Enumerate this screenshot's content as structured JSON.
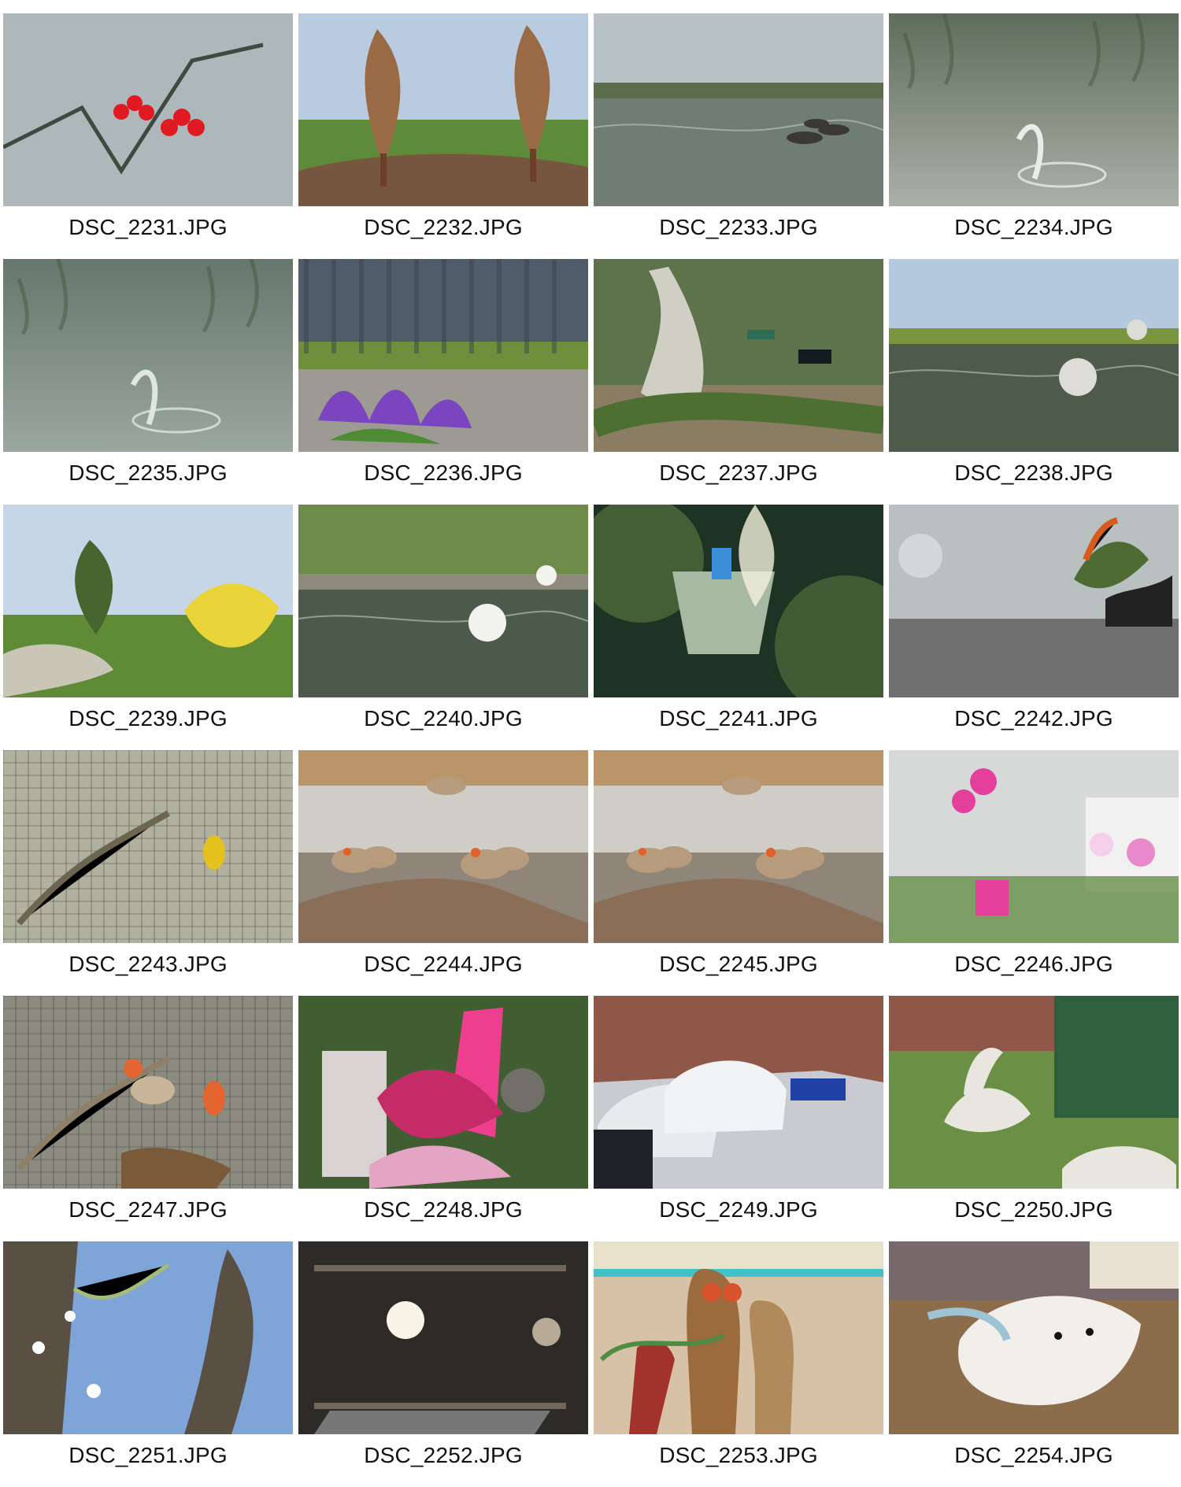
{
  "thumbnails": [
    {
      "filename": "DSC_2231.JPG",
      "scene": "red-berries",
      "colors": [
        "#aeb7ba",
        "#6c7a72",
        "#3d4a40"
      ],
      "accent": "#e01a22"
    },
    {
      "filename": "DSC_2232.JPG",
      "scene": "park-trees",
      "colors": [
        "#b9cbe0",
        "#5d8b3a",
        "#6b3f28"
      ],
      "accent": "#9a6a45"
    },
    {
      "filename": "DSC_2233.JPG",
      "scene": "pond-geese",
      "colors": [
        "#b8c2c7",
        "#5b6d4a",
        "#707d72"
      ],
      "accent": "#3a3a32"
    },
    {
      "filename": "DSC_2234.JPG",
      "scene": "water-splash",
      "colors": [
        "#5e6d5b",
        "#879184",
        "#a9b1a7"
      ],
      "accent": "#e8eee5"
    },
    {
      "filename": "DSC_2235.JPG",
      "scene": "water-ripple",
      "colors": [
        "#66776d",
        "#7f8d84",
        "#9ba6a0"
      ],
      "accent": "#dfe6e1"
    },
    {
      "filename": "DSC_2236.JPG",
      "scene": "crocus-flowers",
      "colors": [
        "#515c6a",
        "#6f8f3c",
        "#9d9a93"
      ],
      "accent": "#7b45bf"
    },
    {
      "filename": "DSC_2237.JPG",
      "scene": "garden-statue",
      "colors": [
        "#5e724c",
        "#8b7d63",
        "#c8c6b6"
      ],
      "accent": "#d0cfc3"
    },
    {
      "filename": "DSC_2238.JPG",
      "scene": "garden-pond",
      "colors": [
        "#b5c9de",
        "#7a9540",
        "#4e5b4a"
      ],
      "accent": "#dedcd6"
    },
    {
      "filename": "DSC_2239.JPG",
      "scene": "garden-path",
      "colors": [
        "#c6d6e7",
        "#5f8a36",
        "#c9c5b7"
      ],
      "accent": "#e9d43a"
    },
    {
      "filename": "DSC_2240.JPG",
      "scene": "pebble-pond",
      "colors": [
        "#6f8b49",
        "#8e8b7d",
        "#4c5a4b"
      ],
      "accent": "#f2f2ef"
    },
    {
      "filename": "DSC_2241.JPG",
      "scene": "greenhouse-blur",
      "colors": [
        "#1f3324",
        "#4d6a3a",
        "#a7b8a3"
      ],
      "accent": "#3c8fd8"
    },
    {
      "filename": "DSC_2242.JPG",
      "scene": "shop-display",
      "colors": [
        "#b9c1c0",
        "#4e6b34",
        "#707070"
      ],
      "accent": "#d85a1c"
    },
    {
      "filename": "DSC_2243.JPG",
      "scene": "bird-cage",
      "colors": [
        "#a1a48f",
        "#6c6550",
        "#c3c2b2"
      ],
      "accent": "#e5c11d"
    },
    {
      "filename": "DSC_2244.JPG",
      "scene": "finches",
      "colors": [
        "#8f8579",
        "#b69c7c",
        "#d0cdc7"
      ],
      "accent": "#e2602a"
    },
    {
      "filename": "DSC_2245.JPG",
      "scene": "finches",
      "colors": [
        "#8f8579",
        "#b69c7c",
        "#d0cdc7"
      ],
      "accent": "#e2602a"
    },
    {
      "filename": "DSC_2246.JPG",
      "scene": "orchids",
      "colors": [
        "#d6d9d7",
        "#5f8a3f",
        "#f1f1f1"
      ],
      "accent": "#e33f9b"
    },
    {
      "filename": "DSC_2247.JPG",
      "scene": "finch-cage",
      "colors": [
        "#4e4e4b",
        "#8e7f68",
        "#d7d4c2"
      ],
      "accent": "#e3652f"
    },
    {
      "filename": "DSC_2248.JPG",
      "scene": "pink-decor",
      "colors": [
        "#405e31",
        "#c52b67",
        "#d8d3d0"
      ],
      "accent": "#ee3e8e"
    },
    {
      "filename": "DSC_2249.JPG",
      "scene": "parked-cars",
      "colors": [
        "#8f5747",
        "#b8b8b5",
        "#c9cbd0"
      ],
      "accent": "#e9eaec"
    },
    {
      "filename": "DSC_2250.JPG",
      "scene": "alpacas",
      "colors": [
        "#8f5747",
        "#6a8f45",
        "#2f5f3e"
      ],
      "accent": "#e8e6de"
    },
    {
      "filename": "DSC_2251.JPG",
      "scene": "blossom-tree",
      "colors": [
        "#7ea4d8",
        "#5a4f43",
        "#a3bc79"
      ],
      "accent": "#ffffff"
    },
    {
      "filename": "DSC_2252.JPG",
      "scene": "dark-shelf",
      "colors": [
        "#2c2b28",
        "#6f675c",
        "#b7aa96"
      ],
      "accent": "#f8f4e8"
    },
    {
      "filename": "DSC_2253.JPG",
      "scene": "wooden-owls",
      "colors": [
        "#d7c2a8",
        "#9b6a3d",
        "#4e8c44"
      ],
      "accent": "#d8522c"
    },
    {
      "filename": "DSC_2254.JPG",
      "scene": "sleeping-dog",
      "colors": [
        "#8b6c4b",
        "#c8b39b",
        "#77686c"
      ],
      "accent": "#f2efea"
    }
  ]
}
